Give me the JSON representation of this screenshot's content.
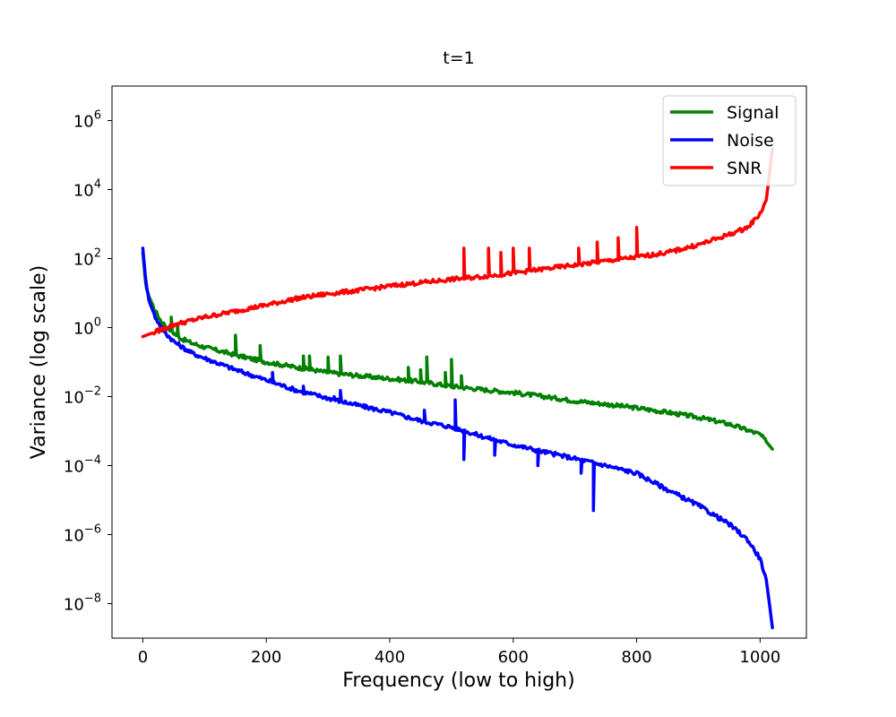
{
  "chart_data": {
    "type": "line",
    "title": "t=1",
    "xlabel": "Frequency (low to high)",
    "ylabel": "Variance (log scale)",
    "xlim": [
      -50,
      1075
    ],
    "ylim": [
      1e-09,
      10000000.0
    ],
    "yscale": "log",
    "grid": false,
    "legend_position": "top-right",
    "xticks": [
      0,
      200,
      400,
      600,
      800,
      1000
    ],
    "yticks": [
      1e-08,
      1e-06,
      0.0001,
      0.01,
      1,
      100.0,
      10000.0,
      1000000.0
    ],
    "ytick_exponents": [
      "−8",
      "−6",
      "−4",
      "−2",
      "0",
      "2",
      "4",
      "6"
    ],
    "series": [
      {
        "name": "Signal",
        "color": "#008000",
        "x": [
          0,
          5,
          10,
          20,
          30,
          40,
          50,
          60,
          80,
          100,
          120,
          150,
          180,
          200,
          250,
          300,
          350,
          400,
          450,
          500,
          550,
          600,
          650,
          700,
          750,
          800,
          850,
          900,
          950,
          1000,
          1020
        ],
        "y": [
          150,
          15,
          8,
          3,
          1.5,
          1,
          0.7,
          0.5,
          0.35,
          0.27,
          0.22,
          0.16,
          0.12,
          0.1,
          0.07,
          0.05,
          0.04,
          0.033,
          0.027,
          0.02,
          0.016,
          0.013,
          0.01,
          0.0075,
          0.006,
          0.0047,
          0.0035,
          0.0025,
          0.0016,
          0.0008,
          0.0003
        ],
        "spikes": [
          [
            45,
            2
          ],
          [
            55,
            1.3
          ],
          [
            150,
            0.6
          ],
          [
            190,
            0.3
          ],
          [
            260,
            0.15
          ],
          [
            270,
            0.15
          ],
          [
            300,
            0.14
          ],
          [
            320,
            0.15
          ],
          [
            430,
            0.07
          ],
          [
            450,
            0.06
          ],
          [
            460,
            0.14
          ],
          [
            490,
            0.05
          ],
          [
            500,
            0.12
          ],
          [
            515,
            0.04
          ]
        ]
      },
      {
        "name": "Noise",
        "color": "#0000ff",
        "x": [
          0,
          5,
          10,
          20,
          30,
          40,
          50,
          60,
          80,
          100,
          150,
          200,
          250,
          300,
          350,
          400,
          450,
          500,
          550,
          600,
          650,
          700,
          750,
          800,
          850,
          900,
          950,
          980,
          1000,
          1010,
          1015,
          1020
        ],
        "y": [
          200,
          20,
          6,
          2,
          1,
          0.6,
          0.4,
          0.3,
          0.18,
          0.13,
          0.06,
          0.03,
          0.015,
          0.009,
          0.0055,
          0.0035,
          0.002,
          0.0013,
          0.0007,
          0.0004,
          0.00025,
          0.00016,
          0.0001,
          6e-05,
          2e-05,
          7e-06,
          2e-06,
          7e-07,
          2e-07,
          5e-08,
          1e-08,
          2e-09
        ],
        "spikes": [
          [
            210,
            0.05
          ],
          [
            260,
            0.02
          ],
          [
            310,
            0.01
          ],
          [
            320,
            0.015
          ],
          [
            455,
            0.004
          ],
          [
            505,
            0.008
          ],
          [
            520,
            0.00015
          ],
          [
            570,
            0.0002
          ],
          [
            640,
            0.0001
          ],
          [
            710,
            6e-05
          ],
          [
            730,
            5e-06
          ]
        ]
      },
      {
        "name": "SNR",
        "color": "#ff0000",
        "x": [
          0,
          20,
          50,
          100,
          150,
          200,
          250,
          300,
          350,
          400,
          450,
          500,
          550,
          600,
          650,
          700,
          750,
          800,
          850,
          900,
          950,
          980,
          1000,
          1010,
          1020
        ],
        "y": [
          0.55,
          0.75,
          1.2,
          2,
          3,
          4.5,
          7,
          9.5,
          12,
          16,
          20,
          25,
          30,
          38,
          50,
          65,
          85,
          110,
          150,
          250,
          500,
          800,
          2000,
          5000,
          150000
        ],
        "spikes": [
          [
            520,
            200
          ],
          [
            560,
            200
          ],
          [
            580,
            150
          ],
          [
            600,
            200
          ],
          [
            625,
            200
          ],
          [
            705,
            200
          ],
          [
            735,
            300
          ],
          [
            770,
            400
          ],
          [
            800,
            800
          ]
        ]
      }
    ]
  }
}
